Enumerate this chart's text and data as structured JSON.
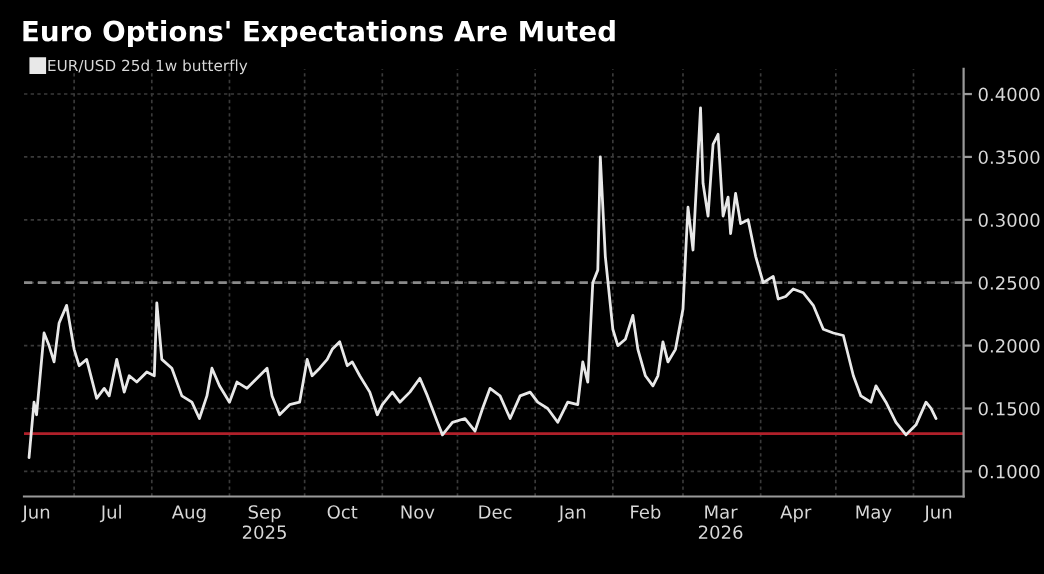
{
  "chart_data": {
    "type": "line",
    "title": "Euro Options' Expectations Are Muted",
    "x": [
      "2025-06-13",
      "2025-06-15",
      "2025-06-16",
      "2025-06-19",
      "2025-06-21",
      "2025-06-23",
      "2025-06-25",
      "2025-06-28",
      "2025-07-01",
      "2025-07-03",
      "2025-07-06",
      "2025-07-10",
      "2025-07-13",
      "2025-07-15",
      "2025-07-18",
      "2025-07-21",
      "2025-07-23",
      "2025-07-26",
      "2025-07-30",
      "2025-08-02",
      "2025-08-03",
      "2025-08-05",
      "2025-08-09",
      "2025-08-13",
      "2025-08-17",
      "2025-08-20",
      "2025-08-23",
      "2025-08-25",
      "2025-08-28",
      "2025-09-01",
      "2025-09-04",
      "2025-09-08",
      "2025-09-12",
      "2025-09-16",
      "2025-09-18",
      "2025-09-21",
      "2025-09-25",
      "2025-09-29",
      "2025-10-02",
      "2025-10-04",
      "2025-10-07",
      "2025-10-10",
      "2025-10-12",
      "2025-10-15",
      "2025-10-18",
      "2025-10-20",
      "2025-10-23",
      "2025-10-27",
      "2025-10-30",
      "2025-11-01",
      "2025-11-05",
      "2025-11-08",
      "2025-11-12",
      "2025-11-16",
      "2025-11-19",
      "2025-11-23",
      "2025-11-25",
      "2025-11-29",
      "2025-12-04",
      "2025-12-08",
      "2025-12-11",
      "2025-12-14",
      "2025-12-18",
      "2025-12-22",
      "2025-12-26",
      "2025-12-30",
      "2026-01-02",
      "2026-01-06",
      "2026-01-10",
      "2026-01-14",
      "2026-01-18",
      "2026-01-20",
      "2026-01-22",
      "2026-01-24",
      "2026-01-26",
      "2026-01-27",
      "2026-01-29",
      "2026-02-01",
      "2026-02-03",
      "2026-02-06",
      "2026-02-09",
      "2026-02-11",
      "2026-02-14",
      "2026-02-17",
      "2026-02-19",
      "2026-02-21",
      "2026-02-23",
      "2026-02-26",
      "2026-03-01",
      "2026-03-02",
      "2026-03-03",
      "2026-03-05",
      "2026-03-08",
      "2026-03-09",
      "2026-03-11",
      "2026-03-13",
      "2026-03-15",
      "2026-03-17",
      "2026-03-19",
      "2026-03-20",
      "2026-03-22",
      "2026-03-24",
      "2026-03-27",
      "2026-03-30",
      "2026-04-02",
      "2026-04-06",
      "2026-04-08",
      "2026-04-11",
      "2026-04-14",
      "2026-04-18",
      "2026-04-22",
      "2026-04-26",
      "2026-04-30",
      "2026-05-04",
      "2026-05-08",
      "2026-05-11",
      "2026-05-15",
      "2026-05-17",
      "2026-05-21",
      "2026-05-25",
      "2026-05-29",
      "2026-06-02",
      "2026-06-06",
      "2026-06-08",
      "2026-06-10"
    ],
    "series": [
      {
        "name": "EUR/USD 25d 1w butterfly",
        "color": "#e8e8e8",
        "values": [
          0.111,
          0.155,
          0.145,
          0.21,
          0.2,
          0.187,
          0.218,
          0.232,
          0.197,
          0.184,
          0.189,
          0.158,
          0.166,
          0.16,
          0.189,
          0.163,
          0.176,
          0.171,
          0.179,
          0.176,
          0.234,
          0.189,
          0.182,
          0.16,
          0.155,
          0.142,
          0.16,
          0.182,
          0.168,
          0.155,
          0.171,
          0.166,
          0.174,
          0.182,
          0.16,
          0.145,
          0.153,
          0.155,
          0.189,
          0.176,
          0.182,
          0.189,
          0.197,
          0.203,
          0.184,
          0.187,
          0.176,
          0.163,
          0.145,
          0.153,
          0.163,
          0.155,
          0.163,
          0.174,
          0.16,
          0.139,
          0.129,
          0.139,
          0.142,
          0.132,
          0.15,
          0.166,
          0.16,
          0.142,
          0.16,
          0.163,
          0.155,
          0.15,
          0.139,
          0.155,
          0.153,
          0.187,
          0.171,
          0.25,
          0.26,
          0.35,
          0.271,
          0.213,
          0.2,
          0.205,
          0.224,
          0.197,
          0.176,
          0.168,
          0.176,
          0.203,
          0.187,
          0.197,
          0.229,
          0.271,
          0.31,
          0.276,
          0.389,
          0.329,
          0.303,
          0.36,
          0.368,
          0.303,
          0.318,
          0.289,
          0.321,
          0.297,
          0.3,
          0.271,
          0.25,
          0.255,
          0.237,
          0.239,
          0.245,
          0.242,
          0.232,
          0.213,
          0.21,
          0.208,
          0.176,
          0.16,
          0.155,
          0.168,
          0.155,
          0.139,
          0.129,
          0.137,
          0.155,
          0.15,
          0.142
        ]
      }
    ],
    "xlim": [
      "2025-06-11",
      "2026-06-21"
    ],
    "xticks": [
      {
        "value": "2025-06-16",
        "label": "Jun"
      },
      {
        "value": "2025-07-01",
        "label": null
      },
      {
        "value": "2025-07-16",
        "label": "Jul"
      },
      {
        "value": "2025-08-01",
        "label": null
      },
      {
        "value": "2025-08-16",
        "label": "Aug"
      },
      {
        "value": "2025-09-01",
        "label": null
      },
      {
        "value": "2025-09-15",
        "label": "Sep\n2025"
      },
      {
        "value": "2025-10-01",
        "label": null
      },
      {
        "value": "2025-10-16",
        "label": "Oct"
      },
      {
        "value": "2025-11-01",
        "label": null
      },
      {
        "value": "2025-11-15",
        "label": "Nov"
      },
      {
        "value": "2025-12-01",
        "label": null
      },
      {
        "value": "2025-12-16",
        "label": "Dec"
      },
      {
        "value": "2026-01-01",
        "label": null
      },
      {
        "value": "2026-01-16",
        "label": "Jan"
      },
      {
        "value": "2026-02-01",
        "label": null
      },
      {
        "value": "2026-02-14",
        "label": "Feb"
      },
      {
        "value": "2026-03-01",
        "label": null
      },
      {
        "value": "2026-03-16",
        "label": "Mar\n2026"
      },
      {
        "value": "2026-04-01",
        "label": null
      },
      {
        "value": "2026-04-15",
        "label": "Apr"
      },
      {
        "value": "2026-05-01",
        "label": null
      },
      {
        "value": "2026-05-16",
        "label": "May"
      },
      {
        "value": "2026-06-01",
        "label": null
      },
      {
        "value": "2026-06-11",
        "label": "Jun"
      }
    ],
    "ylim": [
      0.08,
      0.42
    ],
    "yticks": [
      {
        "value": 0.1,
        "label": "0.1000"
      },
      {
        "value": 0.15,
        "label": "0.1500"
      },
      {
        "value": 0.2,
        "label": "0.2000"
      },
      {
        "value": 0.25,
        "label": "0.2500"
      },
      {
        "value": 0.3,
        "label": "0.3000"
      },
      {
        "value": 0.35,
        "label": "0.3500"
      },
      {
        "value": 0.4,
        "label": "0.4000"
      }
    ],
    "ref_lines": [
      {
        "axis": "y",
        "value": 0.25,
        "color": "#8a8a8a",
        "line_style": "dashed"
      },
      {
        "axis": "y",
        "value": 0.13,
        "color": "#b0202a",
        "line_style": "solid"
      }
    ],
    "grid": true,
    "legend": "top left",
    "marker": "none",
    "line_style": "solid"
  }
}
